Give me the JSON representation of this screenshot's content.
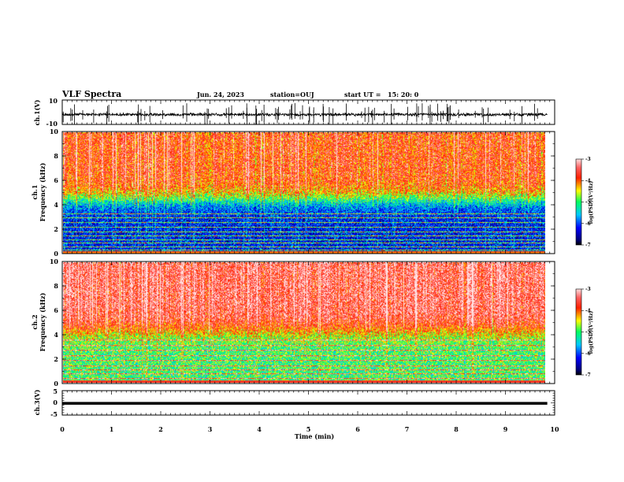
{
  "header": {
    "title": "VLF Spectra",
    "date": "Jun. 24, 2023",
    "station": "station=OUJ",
    "start_label": "start  UT =",
    "start_time": "15: 20: 0"
  },
  "chart_data": [
    {
      "type": "line",
      "name": "ch1-waveform",
      "ylabel": "ch.1(V)",
      "ylim": [
        -10,
        10
      ],
      "xlim": [
        0,
        10
      ],
      "y_ticks": [
        "10",
        "-10"
      ],
      "data_extent_min": 9.85,
      "baseline_v": -1.5,
      "noise_amplitude_v": [
        -3.5,
        1
      ],
      "spike_range_v": [
        -9,
        9
      ],
      "color": "#000000"
    },
    {
      "type": "heatmap",
      "name": "ch1-spectrogram",
      "ylabel_lines": [
        "ch.1",
        "Frequency (kHz)"
      ],
      "ylim": [
        0,
        10
      ],
      "y_ticks": [
        "0",
        "2",
        "4",
        "6",
        "8",
        "10"
      ],
      "xlim": [
        0,
        10
      ],
      "data_extent_min": 9.85,
      "colorbar": {
        "label": "log(PSD)(V²/Hz)",
        "ticks": [
          "-3",
          "-4",
          "-5",
          "-6",
          "-7"
        ],
        "range": [
          -7,
          -3
        ]
      },
      "profile": {
        "low_band_khz": [
          0,
          4
        ],
        "low_band_log_psd": -6.2,
        "high_band_log_psd": -3.8,
        "transition_khz": 4.5
      },
      "line_frequencies_khz": [
        0.3,
        0.6,
        0.9,
        1.2,
        1.5,
        1.8,
        2.2,
        2.6,
        3.0,
        3.3
      ]
    },
    {
      "type": "heatmap",
      "name": "ch2-spectrogram",
      "ylabel_lines": [
        "ch.2",
        "Frequency (kHz)"
      ],
      "ylim": [
        0,
        10
      ],
      "y_ticks": [
        "0",
        "2",
        "4",
        "6",
        "8",
        "10"
      ],
      "xlim": [
        0,
        10
      ],
      "data_extent_min": 9.85,
      "colorbar": {
        "label": "log(PSD)(V²/Hz)",
        "ticks": [
          "-3",
          "-4",
          "-5",
          "-6",
          "-7"
        ],
        "range": [
          -7,
          -3
        ]
      },
      "profile": {
        "low_band_khz": [
          0,
          4
        ],
        "low_band_log_psd": -5.0,
        "high_band_log_psd": -3.4,
        "transition_khz": 4.3
      },
      "line_frequencies_khz": [
        0.4,
        0.8,
        1.1,
        1.4,
        1.9,
        2.3,
        2.7,
        3.1,
        3.6
      ]
    },
    {
      "type": "line",
      "name": "ch3-waveform",
      "ylabel": "ch.3(V)",
      "ylim": [
        -5,
        5
      ],
      "xlim": [
        0,
        10
      ],
      "y_ticks": [
        "5",
        "0",
        "-5"
      ],
      "data_extent_min": 9.85,
      "baseline_v": -0.2,
      "color": "#000000"
    }
  ],
  "x_axis": {
    "label": "Time (min)",
    "ticks": [
      "0",
      "1",
      "2",
      "3",
      "4",
      "5",
      "6",
      "7",
      "8",
      "9",
      "10"
    ],
    "range": [
      0,
      10
    ]
  }
}
